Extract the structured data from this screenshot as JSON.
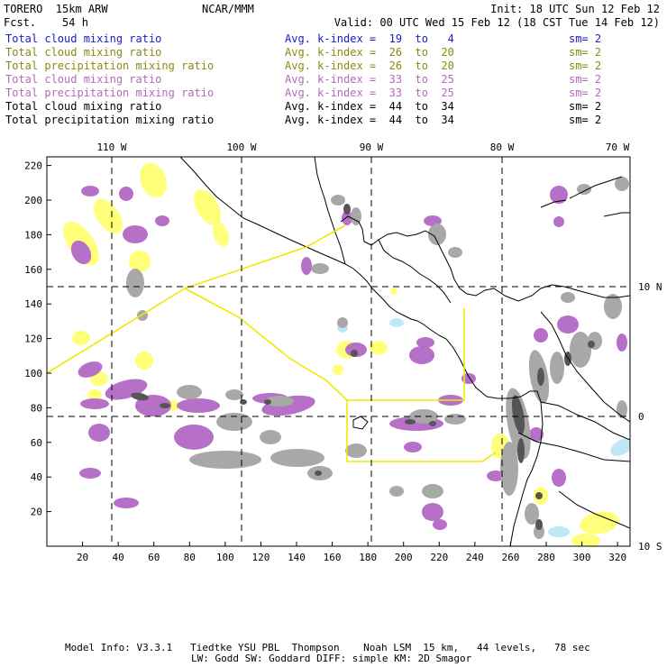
{
  "header": {
    "model": "TORERO  15km ARW",
    "center": "NCAR/MMM",
    "forecast": "Fcst.    54 h",
    "init": "Init: 18 UTC Sun 12 Feb 12",
    "valid": "Valid: 00 UTC Wed 15 Feb 12 (18 CST Tue 14 Feb 12)"
  },
  "legend": [
    {
      "field": "Total cloud mixing ratio",
      "avg": "Avg. k-index =  19  to   4",
      "sm": "sm= 2",
      "color": "#1a1acc"
    },
    {
      "field": "Total cloud mixing ratio",
      "avg": "Avg. k-index =  26  to  20",
      "sm": "sm= 2",
      "color": "#8a8a10"
    },
    {
      "field": "Total precipitation mixing ratio",
      "avg": "Avg. k-index =  26  to  20",
      "sm": "sm= 2",
      "color": "#8a8a10"
    },
    {
      "field": "Total cloud mixing ratio",
      "avg": "Avg. k-index =  33  to  25",
      "sm": "sm= 2",
      "color": "#b36ab8"
    },
    {
      "field": "Total precipitation mixing ratio",
      "avg": "Avg. k-index =  33  to  25",
      "sm": "sm= 2",
      "color": "#b36ab8"
    },
    {
      "field": "Total cloud mixing ratio",
      "avg": "Avg. k-index =  44  to  34",
      "sm": "sm= 2",
      "color": "#000000"
    },
    {
      "field": "Total precipitation mixing ratio",
      "avg": "Avg. k-index =  44  to  34",
      "sm": "sm= 2",
      "color": "#000000"
    }
  ],
  "map": {
    "lon_labels": [
      "110 W",
      "100 W",
      "90 W",
      "80 W",
      "70 W"
    ],
    "lat_labels": [
      "10 N",
      "0",
      "10 S"
    ],
    "x_ticks": [
      "20",
      "40",
      "60",
      "80",
      "100",
      "120",
      "140",
      "160",
      "180",
      "200",
      "220",
      "240",
      "260",
      "280",
      "300",
      "320"
    ],
    "y_ticks": [
      "220",
      "200",
      "180",
      "160",
      "140",
      "120",
      "100",
      "80",
      "60",
      "40",
      "20"
    ],
    "colors": {
      "lightblue": "#bfe8f7",
      "yellow": "#ffff7a",
      "purple": "#b770c8",
      "gray": "#a8a8a8",
      "darkgray": "#555555",
      "box": "#f0e800",
      "coast": "#000000"
    }
  },
  "footer": {
    "line1": "Model Info: V3.3.1   Tiedtke YSU PBL  Thompson    Noah LSM  15 km,   44 levels,   78 sec",
    "line2": "LW: Godd SW: Goddard DIFF: simple KM: 2D Smagor"
  }
}
